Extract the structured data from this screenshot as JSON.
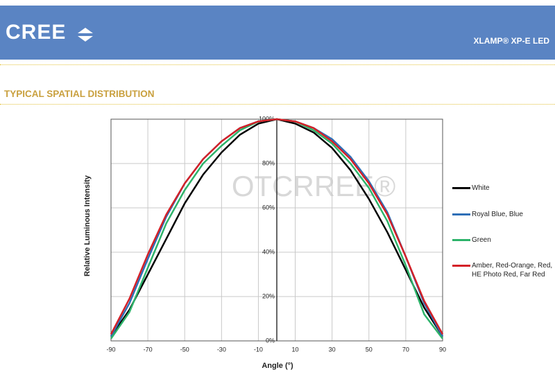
{
  "header": {
    "logo": "CREE",
    "product": "XLAMP® XP-E LED"
  },
  "section_title": "TYPICAL SPATIAL DISTRIBUTION",
  "chart_data": {
    "type": "line",
    "xlabel": "Angle (°)",
    "ylabel": "Relative Luminous Intensity",
    "watermark": "OTCRREE®",
    "x": [
      -90,
      -80,
      -70,
      -60,
      -50,
      -40,
      -30,
      -20,
      -10,
      0,
      10,
      20,
      30,
      40,
      50,
      60,
      70,
      80,
      90
    ],
    "series": [
      {
        "name": "White",
        "color": "#000000",
        "values": [
          2,
          14,
          30,
          46,
          62,
          75,
          85,
          93,
          98,
          100,
          98,
          94,
          87,
          77,
          64,
          49,
          32,
          15,
          2
        ]
      },
      {
        "name": "Royal Blue, Blue",
        "color": "#2e6fb7",
        "values": [
          2,
          17,
          37,
          56,
          71,
          82,
          90,
          96,
          99,
          100,
          99,
          96,
          91,
          83,
          72,
          58,
          38,
          17,
          2
        ]
      },
      {
        "name": "Green",
        "color": "#2db36a",
        "values": [
          1,
          13,
          33,
          53,
          68,
          80,
          88,
          95,
          99,
          100,
          99,
          95,
          89,
          80,
          69,
          54,
          34,
          12,
          1
        ]
      },
      {
        "name": "Amber, Red-Orange, Red, HE Photo Red, Far Red",
        "color": "#d42027",
        "values": [
          3,
          19,
          39,
          57,
          71,
          82,
          90,
          96,
          99,
          100,
          99,
          96,
          90,
          82,
          71,
          57,
          38,
          18,
          3
        ]
      }
    ],
    "xlim": [
      -90,
      90
    ],
    "xticks": [
      -90,
      -70,
      -50,
      -30,
      -10,
      10,
      30,
      50,
      70,
      90
    ],
    "ylim": [
      0,
      100
    ],
    "yticks": [
      {
        "value": 0,
        "label": "0%"
      },
      {
        "value": 20,
        "label": "20%"
      },
      {
        "value": 40,
        "label": "40%"
      },
      {
        "value": 60,
        "label": "60%"
      },
      {
        "value": 80,
        "label": "80%"
      },
      {
        "value": 100,
        "label": "100%"
      }
    ],
    "grid": true
  }
}
